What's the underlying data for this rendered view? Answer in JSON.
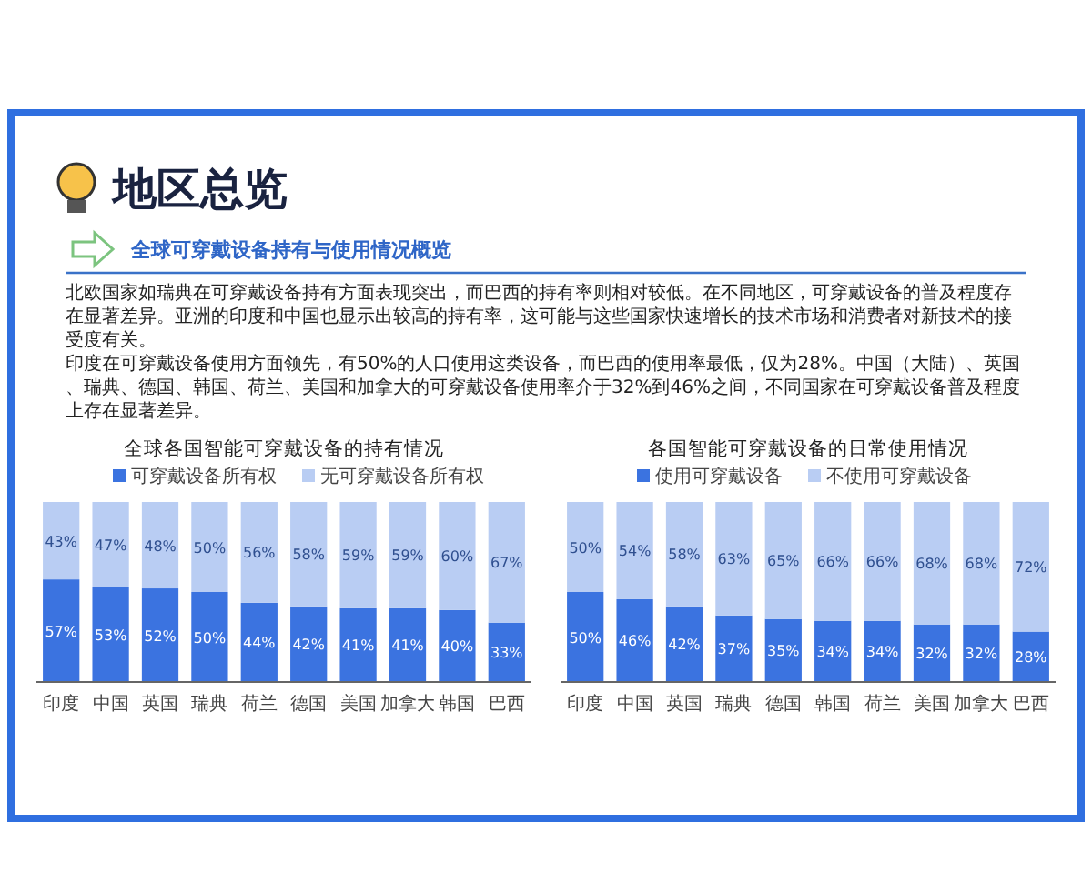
{
  "chart_data": [
    {
      "type": "other",
      "title": "地区总览",
      "subtitle": "全球可穿戴设备持有与使用情况概览",
      "annotations": [
        "北欧国家如瑞典在可穿戴设备持有方面表现突出，而巴西的持有率则相对较低。在不同地区，可穿戴设备的普及程度存在显著差异。亚洲的印度和中国也显示出较高的持有率，这可能与这些国家快速增长的技术市场和消费者对新技术的接受度有关。",
        "印度在可穿戴设备使用方面领先，有50%的人口使用这类设备，而巴西的使用率最低，仅为28%。中国（大陆）、英国、瑞典、德国、韩国、荷兰、美国和加拿大的可穿戴设备使用率介于32%到46%之间，不同国家在可穿戴设备普及程度上存在显著差异。"
      ]
    },
    {
      "type": "bar",
      "title": "全球各国智能可穿戴设备的持有情况",
      "stacked": true,
      "legend": "top",
      "categories": [
        "印度",
        "中国",
        "英国",
        "瑞典",
        "荷兰",
        "德国",
        "美国",
        "加拿大",
        "韩国",
        "巴西"
      ],
      "series": [
        {
          "name": "可穿戴设备所有权",
          "color": "#3b73e0",
          "values": [
            57,
            53,
            52,
            50,
            44,
            42,
            41,
            41,
            40,
            33
          ],
          "value_labels": [
            "57%",
            "53%",
            "52%",
            "50%",
            "44%",
            "42%",
            "41%",
            "41%",
            "40%",
            "33%"
          ]
        },
        {
          "name": "无可穿戴设备所有权",
          "color": "#b9cdf3",
          "values": [
            43,
            47,
            48,
            50,
            56,
            58,
            59,
            59,
            60,
            67
          ],
          "value_labels": [
            "43%",
            "47%",
            "48%",
            "50%",
            "56%",
            "58%",
            "59%",
            "59%",
            "60%",
            "67%"
          ]
        }
      ]
    },
    {
      "type": "bar",
      "title": "各国智能可穿戴设备的日常使用情况",
      "stacked": true,
      "legend": "top",
      "categories": [
        "印度",
        "中国",
        "英国",
        "瑞典",
        "德国",
        "韩国",
        "荷兰",
        "美国",
        "加拿大",
        "巴西"
      ],
      "series": [
        {
          "name": "使用可穿戴设备",
          "color": "#3b73e0",
          "values": [
            50,
            46,
            42,
            37,
            35,
            34,
            34,
            32,
            32,
            28
          ],
          "value_labels": [
            "50%",
            "46%",
            "42%",
            "37%",
            "35%",
            "34%",
            "34%",
            "32%",
            "32%",
            "28%"
          ]
        },
        {
          "name": "不使用可穿戴设备",
          "color": "#b9cdf3",
          "values": [
            50,
            54,
            58,
            63,
            65,
            66,
            66,
            68,
            68,
            72
          ],
          "value_labels": [
            "50%",
            "54%",
            "58%",
            "63%",
            "65%",
            "66%",
            "66%",
            "68%",
            "68%",
            "72%"
          ]
        }
      ]
    }
  ]
}
